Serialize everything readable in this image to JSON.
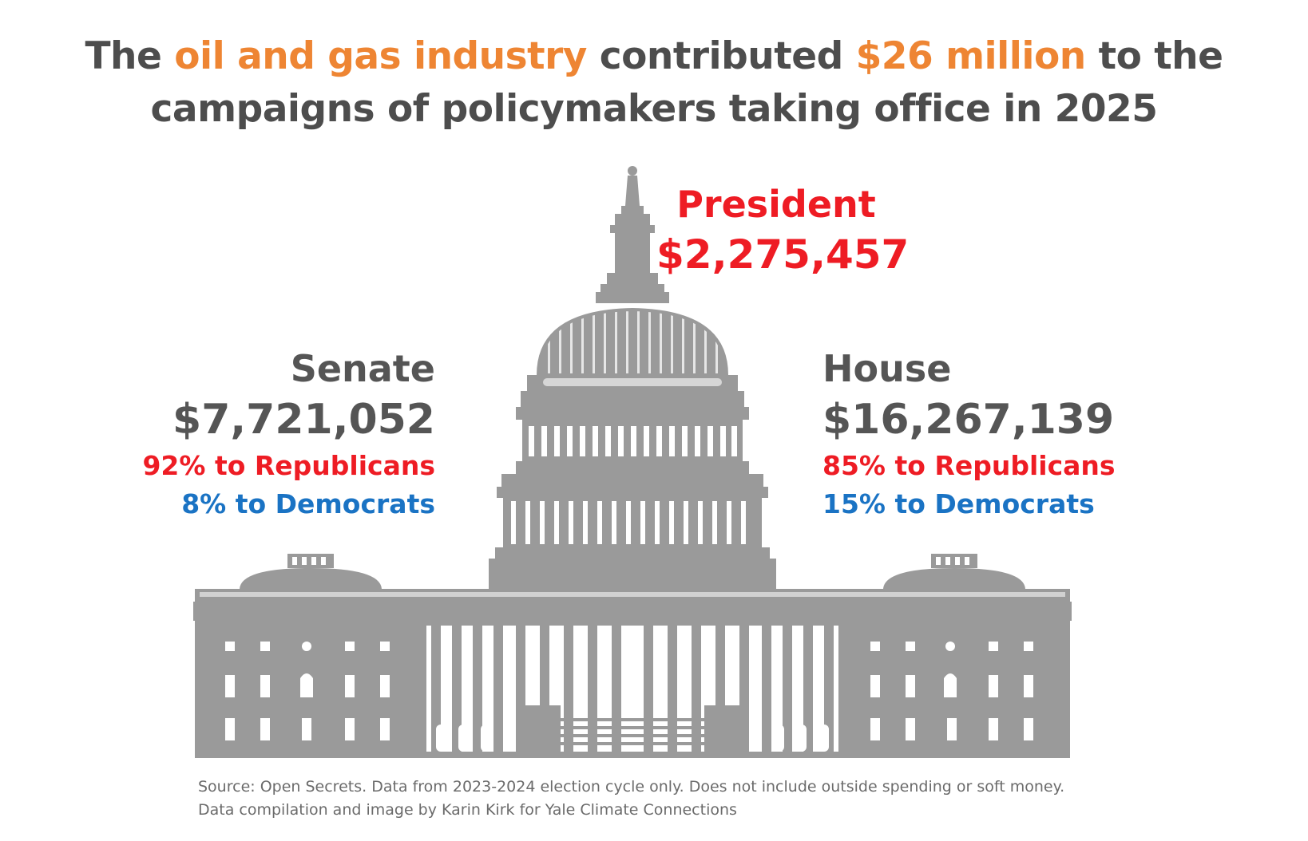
{
  "headline": {
    "part1": "The ",
    "highlight1": "oil and gas industry",
    "part2": " contributed ",
    "highlight2": "$26 million",
    "part3": " to the campaigns of policymakers taking office in 2025"
  },
  "president": {
    "label": "President",
    "amount": "$2,275,457"
  },
  "senate": {
    "label": "Senate",
    "amount": "$7,721,052",
    "republicans": "92% to Republicans",
    "democrats": "8% to Democrats"
  },
  "house": {
    "label": "House",
    "amount": "$16,267,139",
    "republicans": "85% to Republicans",
    "democrats": "15% to Democrats"
  },
  "source": {
    "line1": "Source: Open Secrets. Data from 2023-2024 election cycle only. Does not include outside spending or soft money.",
    "line2": "Data compilation and image by Karin Kirk for Yale Climate Connections"
  },
  "colors": {
    "highlight": "#ee8533",
    "republican": "#ee1c24",
    "democrat": "#1a73c4",
    "building": "#9a9a9a"
  },
  "icons": {
    "building": "us-capitol-icon"
  }
}
